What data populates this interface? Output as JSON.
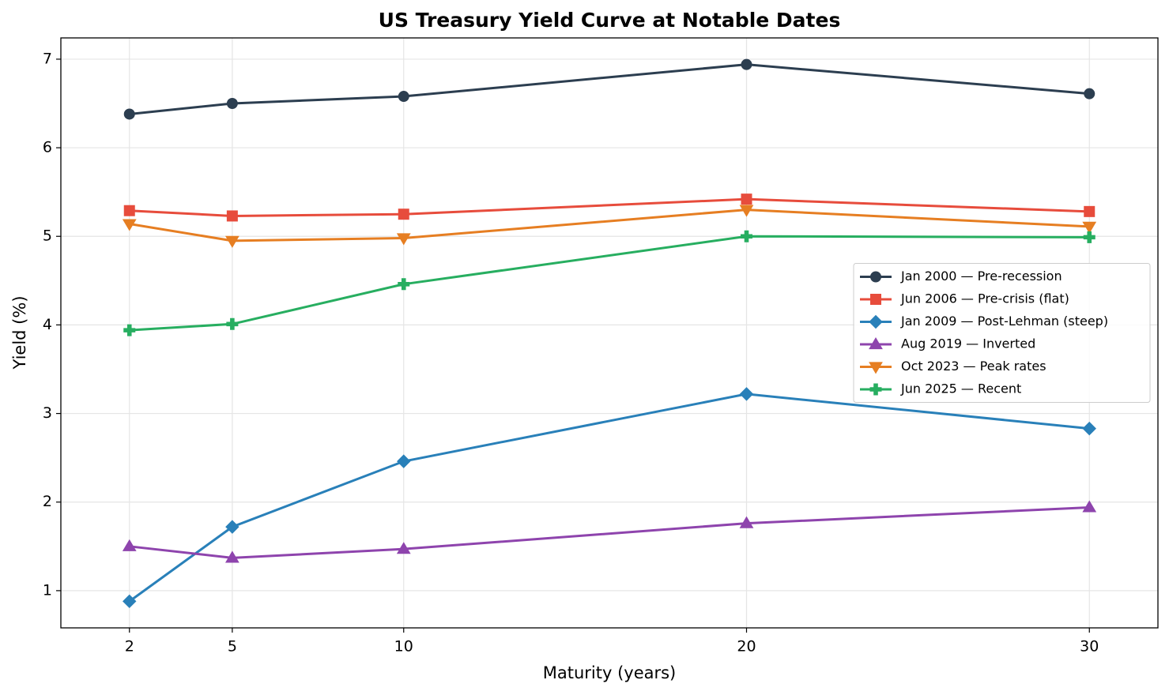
{
  "chart_data": {
    "type": "line",
    "title": "US Treasury Yield Curve at Notable Dates",
    "xlabel": "Maturity (years)",
    "ylabel": "Yield (%)",
    "x": [
      2,
      5,
      10,
      20,
      30
    ],
    "xlim": [
      0,
      32
    ],
    "xticks": [
      2,
      5,
      10,
      20,
      30
    ],
    "ylim": [
      0.58,
      7.24
    ],
    "yticks": [
      1,
      2,
      3,
      4,
      5,
      6,
      7
    ],
    "grid": true,
    "legend": "center right",
    "series": [
      {
        "name": "Jan 2000 — Pre-recession",
        "color": "#2c3e50",
        "marker": "circle",
        "values": [
          6.38,
          6.5,
          6.58,
          6.94,
          6.61
        ]
      },
      {
        "name": "Jun 2006 — Pre-crisis (flat)",
        "color": "#e74c3c",
        "marker": "square",
        "values": [
          5.29,
          5.23,
          5.25,
          5.42,
          5.28
        ]
      },
      {
        "name": "Jan 2009 — Post-Lehman (steep)",
        "color": "#2980b9",
        "marker": "diamond",
        "values": [
          0.88,
          1.72,
          2.46,
          3.22,
          2.83
        ]
      },
      {
        "name": "Aug 2019 — Inverted",
        "color": "#8e44ad",
        "marker": "triangle-up",
        "values": [
          1.5,
          1.37,
          1.47,
          1.76,
          1.94
        ]
      },
      {
        "name": "Oct 2023 — Peak rates",
        "color": "#e67e22",
        "marker": "triangle-down",
        "values": [
          5.14,
          4.95,
          4.98,
          5.3,
          5.11
        ]
      },
      {
        "name": "Jun 2025 — Recent",
        "color": "#27ae60",
        "marker": "plus",
        "values": [
          3.94,
          4.01,
          4.46,
          5.0,
          4.99
        ]
      }
    ]
  }
}
